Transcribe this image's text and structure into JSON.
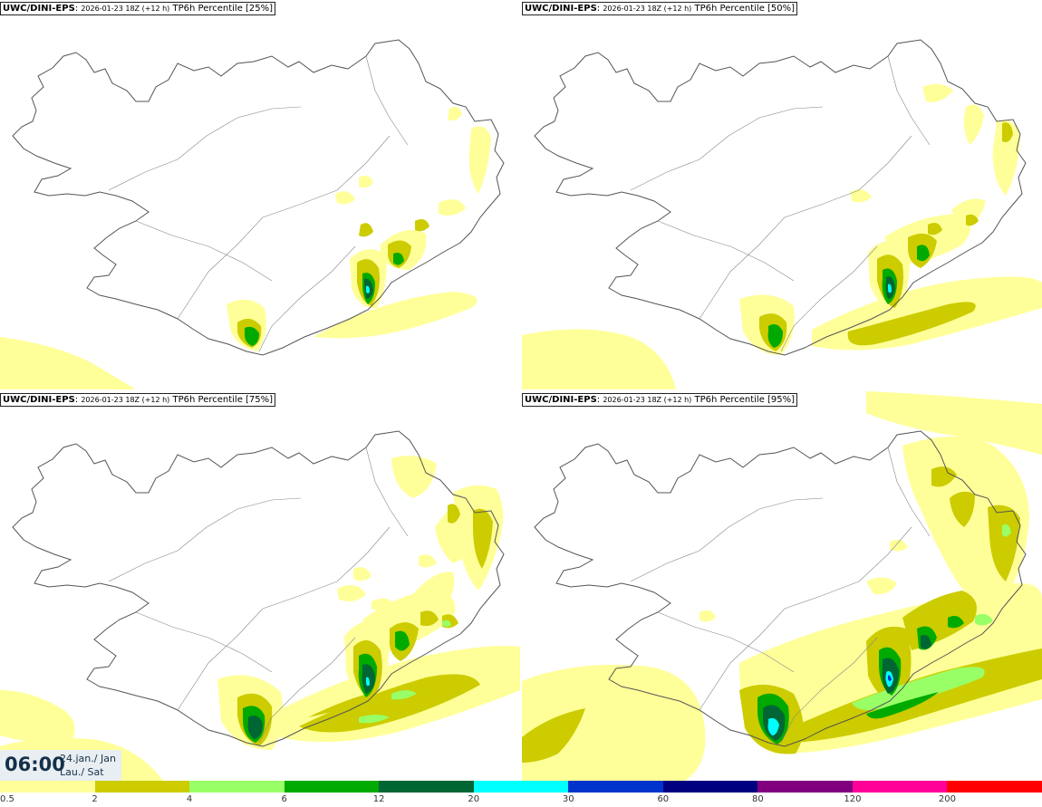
{
  "panels": [
    {
      "source": "UWC/DINI-EPS",
      "run": "2026-01-23 18Z (+12 h)",
      "label": "TP6h Percentile [25%]"
    },
    {
      "source": "UWC/DINI-EPS",
      "run": "2026-01-23 18Z (+12 h)",
      "label": "TP6h Percentile [50%]"
    },
    {
      "source": "UWC/DINI-EPS",
      "run": "2026-01-23 18Z (+12 h)",
      "label": "TP6h Percentile [75%]"
    },
    {
      "source": "UWC/DINI-EPS",
      "run": "2026-01-23 18Z (+12 h)",
      "label": "TP6h Percentile [95%]"
    }
  ],
  "valid_time": {
    "time": "06:00",
    "date": "24.jan./ Jan",
    "day": "Lau./ Sat"
  },
  "legend": {
    "ticks": [
      "0.5",
      "2",
      "4",
      "6",
      "12",
      "20",
      "30",
      "60",
      "80",
      "120",
      "200"
    ],
    "colors": [
      "#ffff99",
      "#cccc00",
      "#99ff66",
      "#00aa00",
      "#006633",
      "#00ffff",
      "#0033cc",
      "#000080",
      "#800080",
      "#ff0099",
      "#ff0000"
    ]
  },
  "colors": {
    "light": "#ffff99",
    "olive": "#cccc00",
    "lightgreen": "#99ff66",
    "green": "#00aa00",
    "dark": "#006633",
    "cyan": "#00ffff",
    "blue": "#0033cc",
    "coast": "#555555"
  }
}
